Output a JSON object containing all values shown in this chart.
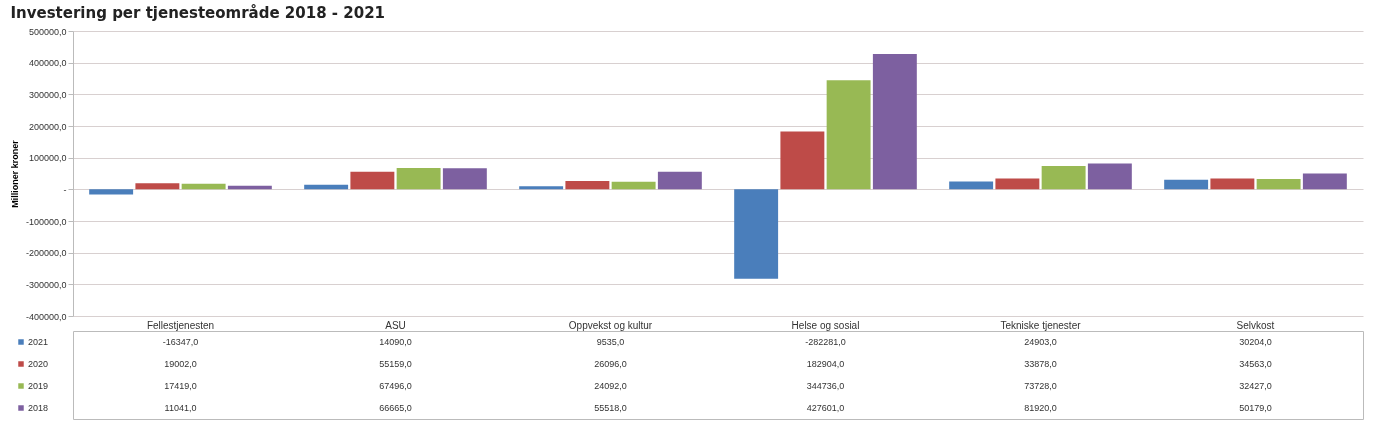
{
  "chart_data": {
    "type": "bar",
    "title": "Investering per tjenesteområde 2018 - 2021",
    "ylabel": "Millioner kroner",
    "categories": [
      "Fellestjenesten",
      "ASU",
      "Oppvekst og kultur",
      "Helse og sosial",
      "Tekniske tjenester",
      "Selvkost"
    ],
    "series": [
      {
        "name": "2021",
        "color": "#4a7ebb",
        "values": [
          -16347,
          14090,
          9535,
          -282281,
          24903,
          30204
        ],
        "value_labels": [
          "-16347,0",
          "14090,0",
          "9535,0",
          "-282281,0",
          "24903,0",
          "30204,0"
        ]
      },
      {
        "name": "2020",
        "color": "#be4b48",
        "values": [
          19002,
          55159,
          26096,
          182904,
          33878,
          34563
        ],
        "value_labels": [
          "19002,0",
          "55159,0",
          "26096,0",
          "182904,0",
          "33878,0",
          "34563,0"
        ]
      },
      {
        "name": "2019",
        "color": "#98b954",
        "values": [
          17419,
          67496,
          24092,
          344736,
          73728,
          32427
        ],
        "value_labels": [
          "17419,0",
          "67496,0",
          "24092,0",
          "344736,0",
          "73728,0",
          "32427,0"
        ]
      },
      {
        "name": "2018",
        "color": "#7d60a0",
        "values": [
          11041,
          66665,
          55518,
          427601,
          81920,
          50179
        ],
        "value_labels": [
          "11041,0",
          "66665,0",
          "55518,0",
          "427601,0",
          "81920,0",
          "50179,0"
        ]
      }
    ],
    "ylim": [
      -400000,
      500000
    ],
    "yticks": [
      {
        "value": 500000,
        "label": "500000,0"
      },
      {
        "value": 400000,
        "label": "400000,0"
      },
      {
        "value": 300000,
        "label": "300000,0"
      },
      {
        "value": 200000,
        "label": "200000,0"
      },
      {
        "value": 100000,
        "label": "100000,0"
      },
      {
        "value": 0,
        "label": "-"
      },
      {
        "value": -100000,
        "label": "-100000,0"
      },
      {
        "value": -200000,
        "label": "-200000,0"
      },
      {
        "value": -300000,
        "label": "-300000,0"
      },
      {
        "value": -400000,
        "label": "-400000,0"
      }
    ],
    "grid": "y",
    "legend": "bottom"
  }
}
